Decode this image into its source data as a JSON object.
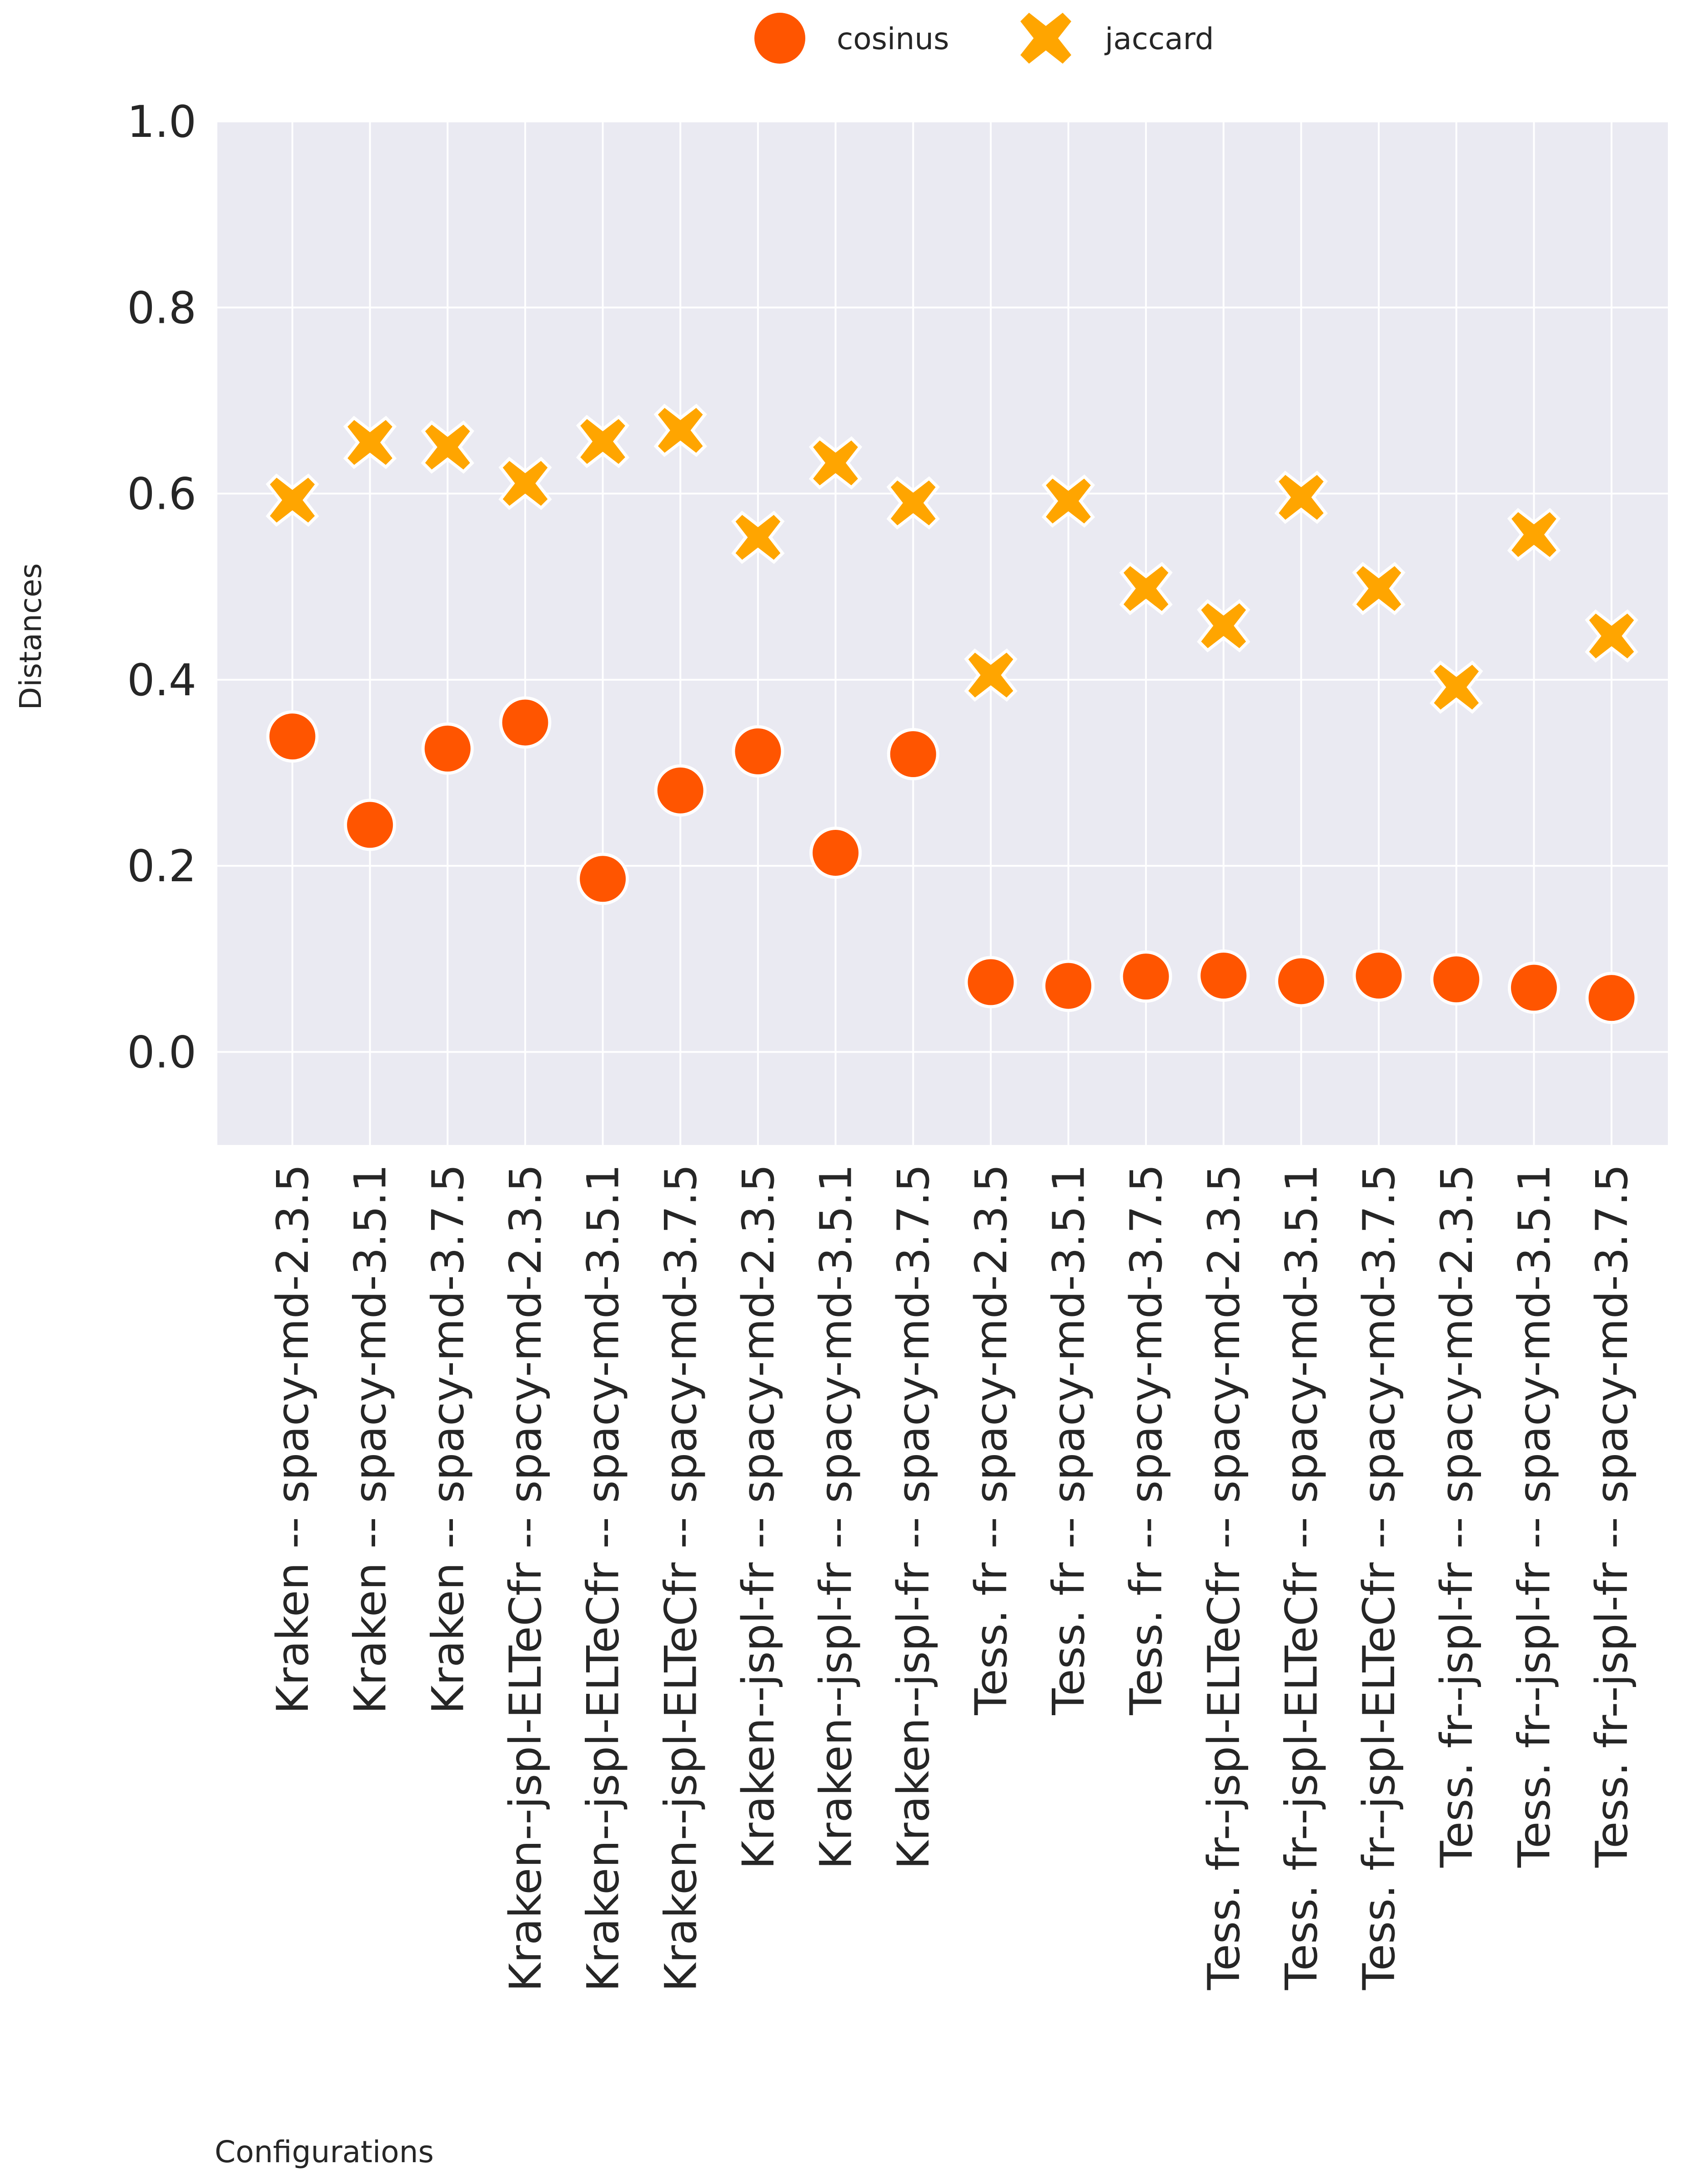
{
  "chart_data": {
    "type": "scatter",
    "ylabel": "Distances",
    "xlabel": "Configurations",
    "ylim": [
      -0.1,
      1.0
    ],
    "yticks": [
      0.0,
      0.2,
      0.4,
      0.6,
      0.8,
      1.0
    ],
    "ytick_labels": [
      "0.0",
      "0.2",
      "0.4",
      "0.6",
      "0.8",
      "1.0"
    ],
    "grid": true,
    "legend_position": "top-center",
    "categories": [
      "Kraken -- spacy-md-2.3.5",
      "Kraken -- spacy-md-3.5.1",
      "Kraken -- spacy-md-3.7.5",
      "Kraken--jspl-ELTeCfr -- spacy-md-2.3.5",
      "Kraken--jspl-ELTeCfr -- spacy-md-3.5.1",
      "Kraken--jspl-ELTeCfr -- spacy-md-3.7.5",
      "Kraken--jspl-fr -- spacy-md-2.3.5",
      "Kraken--jspl-fr -- spacy-md-3.5.1",
      "Kraken--jspl-fr -- spacy-md-3.7.5",
      "Tess. fr -- spacy-md-2.3.5",
      "Tess. fr -- spacy-md-3.5.1",
      "Tess. fr -- spacy-md-3.7.5",
      "Tess. fr--jspl-ELTeCfr -- spacy-md-2.3.5",
      "Tess. fr--jspl-ELTeCfr -- spacy-md-3.5.1",
      "Tess. fr--jspl-ELTeCfr -- spacy-md-3.7.5",
      "Tess. fr--jspl-fr -- spacy-md-2.3.5",
      "Tess. fr--jspl-fr -- spacy-md-3.5.1",
      "Tess. fr--jspl-fr -- spacy-md-3.7.5"
    ],
    "series": [
      {
        "name": "cosinus",
        "marker": "circle",
        "color": "#FF5500",
        "values": [
          0.339,
          0.244,
          0.326,
          0.354,
          0.186,
          0.281,
          0.323,
          0.214,
          0.32,
          0.075,
          0.071,
          0.081,
          0.082,
          0.076,
          0.082,
          0.078,
          0.069,
          0.058
        ]
      },
      {
        "name": "jaccard",
        "marker": "x",
        "color": "#FFA500",
        "values": [
          0.593,
          0.655,
          0.65,
          0.611,
          0.656,
          0.668,
          0.553,
          0.633,
          0.59,
          0.405,
          0.592,
          0.498,
          0.458,
          0.596,
          0.498,
          0.392,
          0.556,
          0.447
        ]
      }
    ]
  },
  "colors": {
    "plot_background": "#EAEAF2",
    "grid": "#FFFFFF",
    "text": "#262626"
  }
}
